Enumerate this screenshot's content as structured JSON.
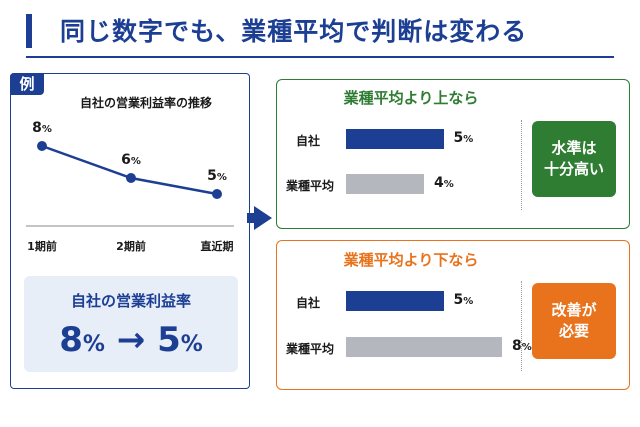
{
  "title": "同じ数字でも、業種平均で判断は変わる",
  "example": {
    "tag": "例",
    "chart_title": "自社の営業利益率の推移",
    "summary_label": "自社の営業利益率",
    "summary_from": "8",
    "summary_to": "5",
    "summary_arrow": "→",
    "percent_sign": "%"
  },
  "cases": {
    "above": {
      "title": "業種平均より上なら",
      "own_label": "自社",
      "industry_label": "業種平均",
      "verdict": "水準は\n十分高い",
      "color": "#2e7d32"
    },
    "below": {
      "title": "業種平均より下なら",
      "own_label": "自社",
      "industry_label": "業種平均",
      "verdict": "改善が\n必要",
      "color": "#e8731c"
    }
  },
  "colors": {
    "primary": "#1c3f94",
    "industry_bar": "#b4b7bd"
  },
  "chart_data": [
    {
      "type": "line",
      "title": "自社の営業利益率の推移",
      "categories": [
        "1期前",
        "2期前",
        "直近期"
      ],
      "series": [
        {
          "values": [
            8,
            6,
            5
          ]
        }
      ],
      "value_labels": [
        "8",
        "6",
        "5"
      ],
      "unit": "%",
      "grid": false
    },
    {
      "type": "bar",
      "title": "業種平均より上なら",
      "categories": [
        "自社",
        "業種平均"
      ],
      "values": [
        5,
        4
      ],
      "value_labels": [
        "5",
        "4"
      ],
      "unit": "%"
    },
    {
      "type": "bar",
      "title": "業種平均より下なら",
      "categories": [
        "自社",
        "業種平均"
      ],
      "values": [
        5,
        8
      ],
      "value_labels": [
        "5",
        "8"
      ],
      "unit": "%"
    }
  ]
}
